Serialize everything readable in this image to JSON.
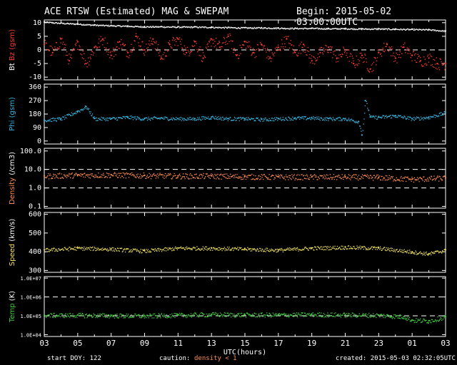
{
  "header": {
    "title": "ACE RTSW (Estimated) MAG & SWEPAM",
    "begin": "Begin: 2015-05-02 03:00:00UTC"
  },
  "footer": {
    "start_doy": "start DOY: 122",
    "caution": "caution:",
    "density_note": "density < 1",
    "created": "created: 2015-05-03 02:32:05UTC"
  },
  "colors": {
    "background": "#000000",
    "frame": "#ffffff",
    "bt": "#ffffff",
    "bz": "#ff3b2f",
    "phi": "#38b6e0",
    "density": "#ff8c50",
    "speed": "#f0e060",
    "temp": "#3fcf3f",
    "dashed": "#ffffff"
  },
  "chart_data": {
    "type": "scatter",
    "title": "ACE RTSW (Estimated) MAG & SWEPAM",
    "xlabel": "UTC(hours)",
    "x_ticks": [
      "03",
      "05",
      "07",
      "09",
      "11",
      "13",
      "15",
      "17",
      "19",
      "21",
      "23",
      "01",
      "03"
    ],
    "x_range_hours": [
      0,
      24
    ],
    "panels": [
      {
        "id": "mag",
        "ylabel": [
          {
            "text": "Bt",
            "color": "#ffffff"
          },
          {
            "text": "Bz",
            "color": "#ff3b2f"
          },
          {
            "text": "(gsm)",
            "color": "#ff3b2f"
          }
        ],
        "scale": "linear",
        "ylim": [
          -11,
          11
        ],
        "ticks": [
          {
            "v": 10,
            "t": "10"
          },
          {
            "v": 5,
            "t": "5"
          },
          {
            "v": 0,
            "t": "0"
          },
          {
            "v": -5,
            "t": "-5"
          },
          {
            "v": -10,
            "t": "-10"
          }
        ],
        "dashed": [
          0
        ],
        "series": [
          {
            "name": "Bt",
            "color": "#ffffff",
            "points": [
              [
                0,
                10.3
              ],
              [
                1,
                9.9
              ],
              [
                2,
                9.6
              ],
              [
                3,
                9.2
              ],
              [
                4,
                9.0
              ],
              [
                5,
                8.8
              ],
              [
                6,
                8.6
              ],
              [
                7,
                8.6
              ],
              [
                8,
                8.5
              ],
              [
                9,
                8.5
              ],
              [
                10,
                8.4
              ],
              [
                11,
                8.3
              ],
              [
                12,
                8.2
              ],
              [
                13,
                8.2
              ],
              [
                14,
                8.1
              ],
              [
                15,
                8.0
              ],
              [
                16,
                8.0
              ],
              [
                17,
                7.9
              ],
              [
                18,
                7.9
              ],
              [
                19,
                7.8
              ],
              [
                20,
                7.8
              ],
              [
                21,
                7.7
              ],
              [
                22,
                7.6
              ],
              [
                23,
                7.5
              ],
              [
                24,
                7.0
              ]
            ],
            "jitter": 0.25
          },
          {
            "name": "Bz",
            "color": "#ff3b2f",
            "points": [
              [
                0,
                2
              ],
              [
                0.5,
                -1
              ],
              [
                1,
                4
              ],
              [
                1.5,
                -4
              ],
              [
                2,
                3
              ],
              [
                2.5,
                -5
              ],
              [
                3,
                1
              ],
              [
                3.5,
                4
              ],
              [
                4,
                -2
              ],
              [
                4.5,
                3
              ],
              [
                5,
                -1
              ],
              [
                5.5,
                5
              ],
              [
                6,
                0
              ],
              [
                6.5,
                4
              ],
              [
                7,
                -3
              ],
              [
                7.5,
                2
              ],
              [
                8,
                4
              ],
              [
                8.5,
                -1
              ],
              [
                9,
                3
              ],
              [
                9.5,
                -3
              ],
              [
                10,
                4
              ],
              [
                10.5,
                1
              ],
              [
                11,
                5
              ],
              [
                11.5,
                -2
              ],
              [
                12,
                3
              ],
              [
                12.5,
                -1
              ],
              [
                13,
                2
              ],
              [
                13.5,
                -3
              ],
              [
                14,
                1
              ],
              [
                14.5,
                4
              ],
              [
                15,
                -1
              ],
              [
                15.5,
                2
              ],
              [
                16,
                -4
              ],
              [
                16.5,
                -1
              ],
              [
                17,
                1
              ],
              [
                17.5,
                -3
              ],
              [
                18,
                0
              ],
              [
                18.5,
                -5
              ],
              [
                19,
                -2
              ],
              [
                19.5,
                -7
              ],
              [
                20,
                -1
              ],
              [
                20.5,
                2
              ],
              [
                21,
                -3
              ],
              [
                21.5,
                1
              ],
              [
                22,
                -2
              ],
              [
                22.5,
                -4
              ],
              [
                23,
                -3
              ],
              [
                23.5,
                -5
              ],
              [
                24,
                -5
              ]
            ],
            "jitter": 2.2
          }
        ]
      },
      {
        "id": "phi",
        "ylabel": [
          {
            "text": "Phi",
            "color": "#38b6e0"
          },
          {
            "text": "(gsm)",
            "color": "#38b6e0"
          }
        ],
        "scale": "linear",
        "ylim": [
          -20,
          380
        ],
        "ticks": [
          {
            "v": 360,
            "t": "360"
          },
          {
            "v": 270,
            "t": "270"
          },
          {
            "v": 180,
            "t": "180"
          },
          {
            "v": 90,
            "t": "90"
          },
          {
            "v": 0,
            "t": "0"
          }
        ],
        "dashed": [],
        "series": [
          {
            "name": "Phi",
            "color": "#38b6e0",
            "points": [
              [
                0,
                140
              ],
              [
                1,
                150
              ],
              [
                2,
                200
              ],
              [
                2.5,
                230
              ],
              [
                3,
                150
              ],
              [
                4,
                150
              ],
              [
                5,
                160
              ],
              [
                6,
                150
              ],
              [
                7,
                155
              ],
              [
                8,
                150
              ],
              [
                9,
                150
              ],
              [
                10,
                160
              ],
              [
                11,
                150
              ],
              [
                12,
                150
              ],
              [
                13,
                145
              ],
              [
                14,
                150
              ],
              [
                15,
                155
              ],
              [
                16,
                155
              ],
              [
                17,
                150
              ],
              [
                18,
                150
              ],
              [
                18.8,
                130
              ],
              [
                19,
                40
              ],
              [
                19.2,
                270
              ],
              [
                19.5,
                160
              ],
              [
                20,
                160
              ],
              [
                21,
                170
              ],
              [
                22,
                150
              ],
              [
                23,
                160
              ],
              [
                24,
                190
              ]
            ],
            "jitter": 12
          }
        ]
      },
      {
        "id": "density",
        "ylabel": [
          {
            "text": "Density",
            "color": "#ff8c50"
          },
          {
            "text": "(/cm3)",
            "color": "#ffffff"
          }
        ],
        "scale": "log",
        "ylim": [
          0.08,
          140
        ],
        "ticks": [
          {
            "v": 100,
            "t": "100.0"
          },
          {
            "v": 10,
            "t": "10.0"
          },
          {
            "v": 1,
            "t": "1.0"
          },
          {
            "v": 0.1,
            "t": "0.1"
          }
        ],
        "dashed": [
          10,
          1
        ],
        "series": [
          {
            "name": "Density",
            "color": "#ff8c50",
            "points": [
              [
                0,
                4.5
              ],
              [
                2,
                5
              ],
              [
                4,
                5.2
              ],
              [
                6,
                4.8
              ],
              [
                8,
                4.5
              ],
              [
                10,
                4.5
              ],
              [
                12,
                4.2
              ],
              [
                14,
                4.0
              ],
              [
                16,
                4.0
              ],
              [
                18,
                4.0
              ],
              [
                20,
                3.8
              ],
              [
                22,
                3.0
              ],
              [
                24,
                3.5
              ]
            ],
            "jitter": 0.15
          }
        ]
      },
      {
        "id": "speed",
        "ylabel": [
          {
            "text": "Speed",
            "color": "#f0e060"
          },
          {
            "text": "(km/s)",
            "color": "#ffffff"
          }
        ],
        "scale": "linear",
        "ylim": [
          290,
          610
        ],
        "ticks": [
          {
            "v": 600,
            "t": "600"
          },
          {
            "v": 500,
            "t": "500"
          },
          {
            "v": 400,
            "t": "400"
          },
          {
            "v": 300,
            "t": "300"
          }
        ],
        "dashed": [],
        "series": [
          {
            "name": "Speed",
            "color": "#f0e060",
            "points": [
              [
                0,
                410
              ],
              [
                2,
                420
              ],
              [
                4,
                415
              ],
              [
                6,
                405
              ],
              [
                8,
                420
              ],
              [
                10,
                420
              ],
              [
                12,
                415
              ],
              [
                14,
                410
              ],
              [
                16,
                420
              ],
              [
                18,
                425
              ],
              [
                20,
                420
              ],
              [
                22,
                400
              ],
              [
                23,
                390
              ],
              [
                24,
                410
              ]
            ],
            "jitter": 10
          }
        ]
      },
      {
        "id": "temp",
        "ylabel": [
          {
            "text": "Temp",
            "color": "#3fcf3f"
          },
          {
            "text": "(K)",
            "color": "#ffffff"
          }
        ],
        "scale": "log",
        "ylim": [
          8000,
          12000000
        ],
        "ticks": [
          {
            "v": 10000000,
            "t": "1.0E+07"
          },
          {
            "v": 1000000,
            "t": "1.0E+06"
          },
          {
            "v": 100000,
            "t": "1.0E+05"
          },
          {
            "v": 10000,
            "t": "1.0E+04"
          }
        ],
        "dashed": [
          1000000,
          100000
        ],
        "series": [
          {
            "name": "Temp",
            "color": "#3fcf3f",
            "points": [
              [
                0,
                110000
              ],
              [
                2,
                110000
              ],
              [
                4,
                105000
              ],
              [
                6,
                100000
              ],
              [
                8,
                110000
              ],
              [
                10,
                120000
              ],
              [
                12,
                115000
              ],
              [
                14,
                115000
              ],
              [
                16,
                120000
              ],
              [
                18,
                115000
              ],
              [
                20,
                110000
              ],
              [
                21.5,
                90000
              ],
              [
                22,
                60000
              ],
              [
                23,
                55000
              ],
              [
                24,
                90000
              ]
            ],
            "jitter": 0.12
          }
        ]
      }
    ]
  }
}
